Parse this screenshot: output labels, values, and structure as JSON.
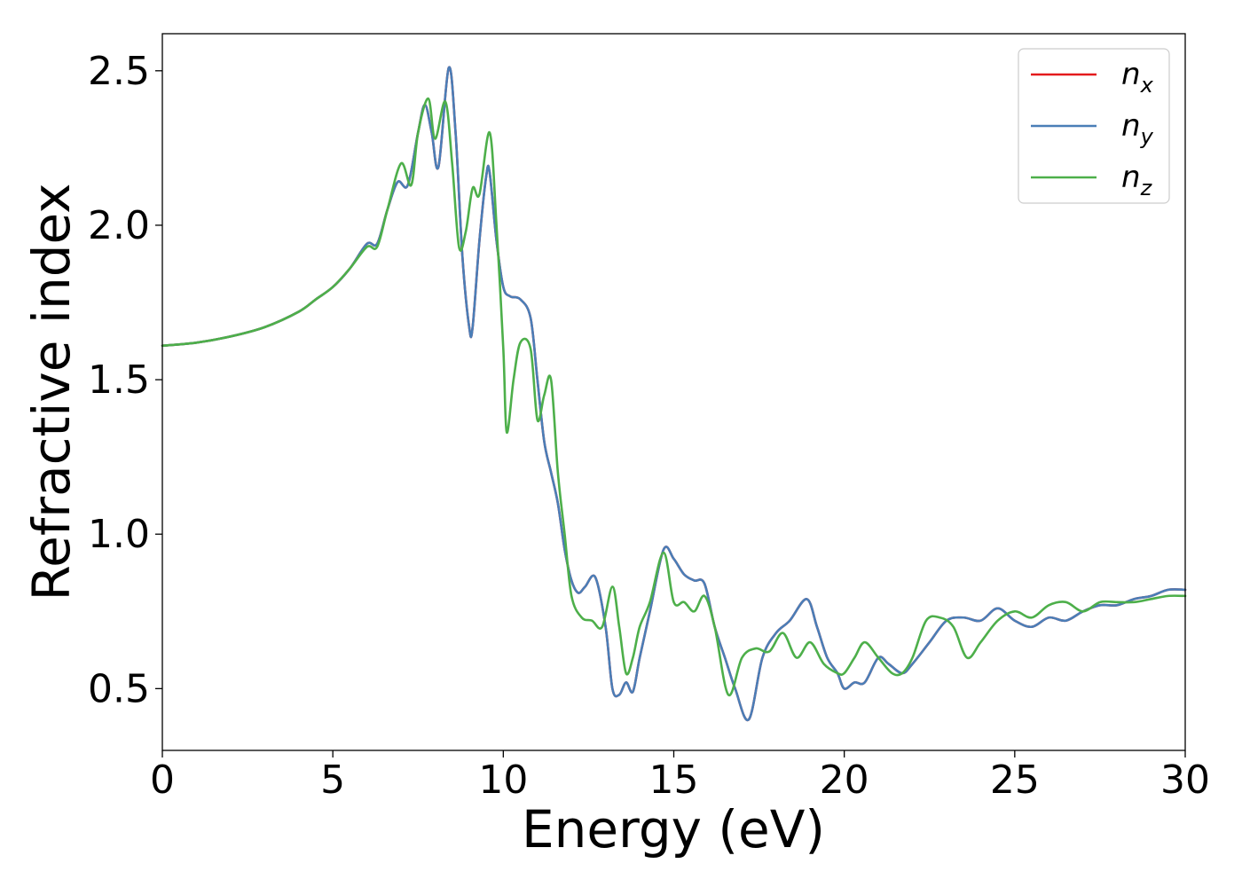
{
  "chart_data": {
    "type": "line",
    "title": "",
    "xlabel": "Energy (eV)",
    "ylabel": "Refractive index",
    "xlim": [
      0,
      30
    ],
    "ylim": [
      0.3,
      2.62
    ],
    "xticks": [
      0,
      5,
      10,
      15,
      20,
      25,
      30
    ],
    "xtick_labels": [
      "0",
      "5",
      "10",
      "15",
      "20",
      "25",
      "30"
    ],
    "yticks": [
      0.5,
      1.0,
      1.5,
      2.0,
      2.5
    ],
    "ytick_labels": [
      "0.5",
      "1.0",
      "1.5",
      "2.0",
      "2.5"
    ],
    "grid": false,
    "legend_position": "top-right",
    "series": [
      {
        "name": "n_x",
        "label_main": "n",
        "label_sub": "x",
        "color": "#e41a1c",
        "x": [
          0,
          1,
          2,
          3,
          4,
          4.5,
          5,
          5.5,
          6,
          6.3,
          6.6,
          6.9,
          7.2,
          7.5,
          7.7,
          7.9,
          8.1,
          8.4,
          8.6,
          8.8,
          9.0,
          9.1,
          9.3,
          9.5,
          9.6,
          9.8,
          10.0,
          10.2,
          10.5,
          10.8,
          11.0,
          11.2,
          11.4,
          11.6,
          11.8,
          12.0,
          12.2,
          12.4,
          12.7,
          13.0,
          13.2,
          13.4,
          13.6,
          13.8,
          14.0,
          14.3,
          14.7,
          15.0,
          15.3,
          15.6,
          15.9,
          16.2,
          16.5,
          16.8,
          17.2,
          17.6,
          18.0,
          18.4,
          18.9,
          19.2,
          19.5,
          19.8,
          20.0,
          20.3,
          20.6,
          21.0,
          21.3,
          21.7,
          22.0,
          22.5,
          23.0,
          23.5,
          24.0,
          24.5,
          25.0,
          25.5,
          26.0,
          26.5,
          27.0,
          27.5,
          28.0,
          28.5,
          29.0,
          29.5,
          30.0
        ],
        "y": [
          1.61,
          1.62,
          1.64,
          1.67,
          1.72,
          1.76,
          1.8,
          1.86,
          1.94,
          1.94,
          2.05,
          2.14,
          2.13,
          2.3,
          2.39,
          2.3,
          2.19,
          2.51,
          2.3,
          1.9,
          1.67,
          1.67,
          1.95,
          2.16,
          2.17,
          1.95,
          1.8,
          1.77,
          1.76,
          1.7,
          1.5,
          1.3,
          1.2,
          1.1,
          0.95,
          0.85,
          0.81,
          0.83,
          0.86,
          0.7,
          0.5,
          0.48,
          0.52,
          0.49,
          0.6,
          0.75,
          0.95,
          0.92,
          0.87,
          0.85,
          0.84,
          0.7,
          0.6,
          0.5,
          0.4,
          0.6,
          0.68,
          0.72,
          0.79,
          0.7,
          0.6,
          0.55,
          0.5,
          0.52,
          0.52,
          0.6,
          0.58,
          0.55,
          0.58,
          0.65,
          0.72,
          0.73,
          0.72,
          0.76,
          0.72,
          0.7,
          0.73,
          0.72,
          0.75,
          0.77,
          0.77,
          0.79,
          0.8,
          0.82,
          0.82
        ]
      },
      {
        "name": "n_y",
        "label_main": "n",
        "label_sub": "y",
        "color": "#4a7eb7",
        "x": [
          0,
          1,
          2,
          3,
          4,
          4.5,
          5,
          5.5,
          6,
          6.3,
          6.6,
          6.9,
          7.2,
          7.5,
          7.7,
          7.9,
          8.1,
          8.4,
          8.6,
          8.8,
          9.0,
          9.1,
          9.3,
          9.5,
          9.6,
          9.8,
          10.0,
          10.2,
          10.5,
          10.8,
          11.0,
          11.2,
          11.4,
          11.6,
          11.8,
          12.0,
          12.2,
          12.4,
          12.7,
          13.0,
          13.2,
          13.4,
          13.6,
          13.8,
          14.0,
          14.3,
          14.7,
          15.0,
          15.3,
          15.6,
          15.9,
          16.2,
          16.5,
          16.8,
          17.2,
          17.6,
          18.0,
          18.4,
          18.9,
          19.2,
          19.5,
          19.8,
          20.0,
          20.3,
          20.6,
          21.0,
          21.3,
          21.7,
          22.0,
          22.5,
          23.0,
          23.5,
          24.0,
          24.5,
          25.0,
          25.5,
          26.0,
          26.5,
          27.0,
          27.5,
          28.0,
          28.5,
          29.0,
          29.5,
          30.0
        ],
        "y": [
          1.61,
          1.62,
          1.64,
          1.67,
          1.72,
          1.76,
          1.8,
          1.86,
          1.94,
          1.94,
          2.05,
          2.14,
          2.13,
          2.3,
          2.39,
          2.3,
          2.19,
          2.51,
          2.3,
          1.9,
          1.67,
          1.67,
          1.95,
          2.16,
          2.17,
          1.95,
          1.8,
          1.77,
          1.76,
          1.7,
          1.5,
          1.3,
          1.2,
          1.1,
          0.95,
          0.85,
          0.81,
          0.83,
          0.86,
          0.7,
          0.5,
          0.48,
          0.52,
          0.49,
          0.6,
          0.75,
          0.95,
          0.92,
          0.87,
          0.85,
          0.84,
          0.7,
          0.6,
          0.5,
          0.4,
          0.6,
          0.68,
          0.72,
          0.79,
          0.7,
          0.6,
          0.55,
          0.5,
          0.52,
          0.52,
          0.6,
          0.58,
          0.55,
          0.58,
          0.65,
          0.72,
          0.73,
          0.72,
          0.76,
          0.72,
          0.7,
          0.73,
          0.72,
          0.75,
          0.77,
          0.77,
          0.79,
          0.8,
          0.82,
          0.82
        ]
      },
      {
        "name": "n_z",
        "label_main": "n",
        "label_sub": "z",
        "color": "#4daf4a",
        "x": [
          0,
          1,
          2,
          3,
          4,
          4.5,
          5,
          5.5,
          6,
          6.3,
          6.6,
          7.0,
          7.3,
          7.5,
          7.8,
          8.0,
          8.3,
          8.5,
          8.7,
          8.9,
          9.1,
          9.3,
          9.6,
          9.8,
          10.0,
          10.1,
          10.3,
          10.5,
          10.8,
          11.0,
          11.2,
          11.4,
          11.6,
          11.8,
          12.0,
          12.3,
          12.6,
          12.9,
          13.2,
          13.4,
          13.6,
          13.8,
          14.0,
          14.3,
          14.7,
          15.0,
          15.3,
          15.6,
          15.9,
          16.2,
          16.6,
          17.0,
          17.4,
          17.8,
          18.2,
          18.6,
          19.0,
          19.4,
          19.8,
          20.0,
          20.3,
          20.6,
          21.0,
          21.4,
          21.7,
          22.0,
          22.4,
          22.8,
          23.2,
          23.6,
          24.0,
          24.5,
          25.0,
          25.5,
          26.0,
          26.5,
          27.0,
          27.5,
          28.0,
          28.5,
          29.0,
          29.5,
          30.0
        ],
        "y": [
          1.61,
          1.62,
          1.64,
          1.67,
          1.72,
          1.76,
          1.8,
          1.86,
          1.93,
          1.93,
          2.05,
          2.2,
          2.13,
          2.3,
          2.41,
          2.28,
          2.4,
          2.2,
          1.93,
          1.98,
          2.12,
          2.1,
          2.3,
          2.0,
          1.6,
          1.33,
          1.5,
          1.62,
          1.6,
          1.37,
          1.45,
          1.5,
          1.2,
          1.0,
          0.8,
          0.73,
          0.72,
          0.7,
          0.83,
          0.7,
          0.55,
          0.6,
          0.7,
          0.78,
          0.94,
          0.78,
          0.78,
          0.75,
          0.8,
          0.7,
          0.48,
          0.6,
          0.63,
          0.62,
          0.68,
          0.6,
          0.65,
          0.58,
          0.55,
          0.55,
          0.6,
          0.65,
          0.6,
          0.55,
          0.55,
          0.6,
          0.72,
          0.73,
          0.7,
          0.6,
          0.65,
          0.72,
          0.75,
          0.73,
          0.77,
          0.78,
          0.75,
          0.78,
          0.78,
          0.78,
          0.79,
          0.8,
          0.8
        ]
      }
    ]
  }
}
